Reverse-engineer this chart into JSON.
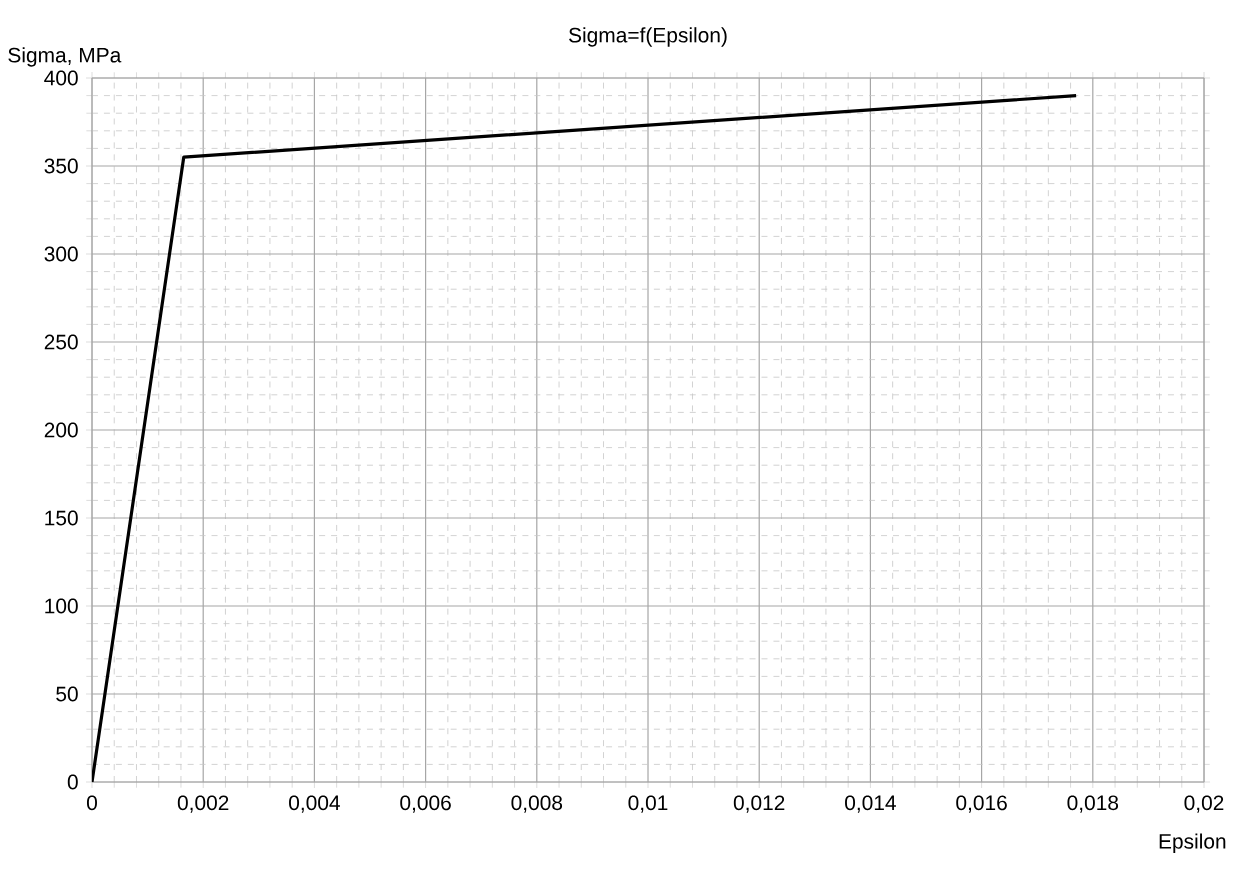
{
  "chart_data": {
    "type": "line",
    "title": "Sigma=f(Epsilon)",
    "xlabel": "Epsilon",
    "ylabel": "Sigma, MPa",
    "x": [
      0,
      0.00165,
      0.0177
    ],
    "series": [
      {
        "color": "#000000",
        "values": [
          0,
          355,
          390
        ]
      }
    ],
    "xlim": [
      0,
      0.02
    ],
    "ylim": [
      0,
      400
    ],
    "xticks": [
      0,
      {
        "value": 0.002,
        "label": "0,002"
      },
      {
        "value": 0.004,
        "label": "0,004"
      },
      {
        "value": 0.006,
        "label": "0,006"
      },
      {
        "value": 0.008,
        "label": "0,008"
      },
      {
        "value": 0.01,
        "label": "0,01"
      },
      {
        "value": 0.012,
        "label": "0,012"
      },
      {
        "value": 0.014,
        "label": "0,014"
      },
      {
        "value": 0.016,
        "label": "0,016"
      },
      {
        "value": 0.018,
        "label": "0,018"
      },
      {
        "value": 0.02,
        "label": "0,02"
      }
    ],
    "yticks": [
      0,
      50,
      100,
      150,
      200,
      250,
      300,
      350,
      400
    ],
    "grid": true,
    "marker": "none",
    "line_style": "solid"
  }
}
